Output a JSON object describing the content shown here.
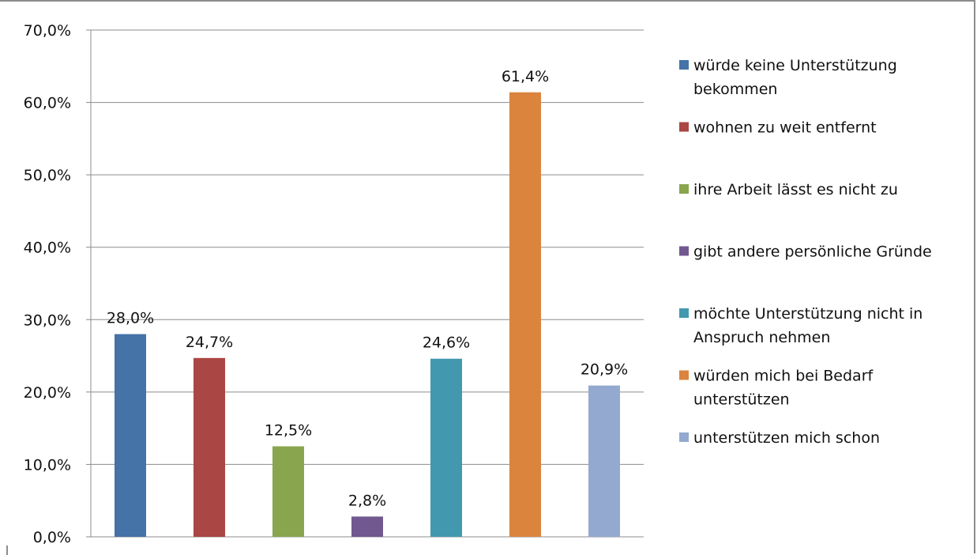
{
  "chart_data": {
    "type": "bar",
    "categories": [
      "würde keine Unterstützung bekommen",
      "wohnen zu weit entfernt",
      "ihre Arbeit lässt es nicht zu",
      "gibt andere persönliche Gründe",
      "möchte Unterstützung nicht in Anspruch nehmen",
      "würden mich bei Bedarf unterstützen",
      "unterstützen mich schon"
    ],
    "values": [
      28.0,
      24.7,
      12.5,
      2.8,
      24.6,
      61.4,
      20.9
    ],
    "data_labels": [
      "28,0%",
      "24,7%",
      "12,5%",
      "2,8%",
      "24,6%",
      "61,4%",
      "20,9%"
    ],
    "colors": [
      "#4572a7",
      "#aa4643",
      "#89a54e",
      "#71588f",
      "#4198af",
      "#db843d",
      "#93a9cf"
    ],
    "legend": [
      [
        "würde keine Unterstützung",
        "bekommen"
      ],
      [
        "wohnen zu weit entfernt"
      ],
      [
        "ihre Arbeit lässt es nicht zu"
      ],
      [
        "gibt andere persönliche Gründe"
      ],
      [
        "möchte Unterstützung nicht in",
        "Anspruch nehmen"
      ],
      [
        "würden mich bei Bedarf",
        "unterstützen"
      ],
      [
        "unterstützen mich schon"
      ]
    ],
    "y_ticks": [
      "0,0%",
      "10,0%",
      "20,0%",
      "30,0%",
      "40,0%",
      "50,0%",
      "60,0%",
      "70,0%"
    ],
    "ylim": [
      0,
      70
    ],
    "grid": true,
    "legend_position": "right",
    "title": "",
    "xlabel": "",
    "ylabel": ""
  }
}
